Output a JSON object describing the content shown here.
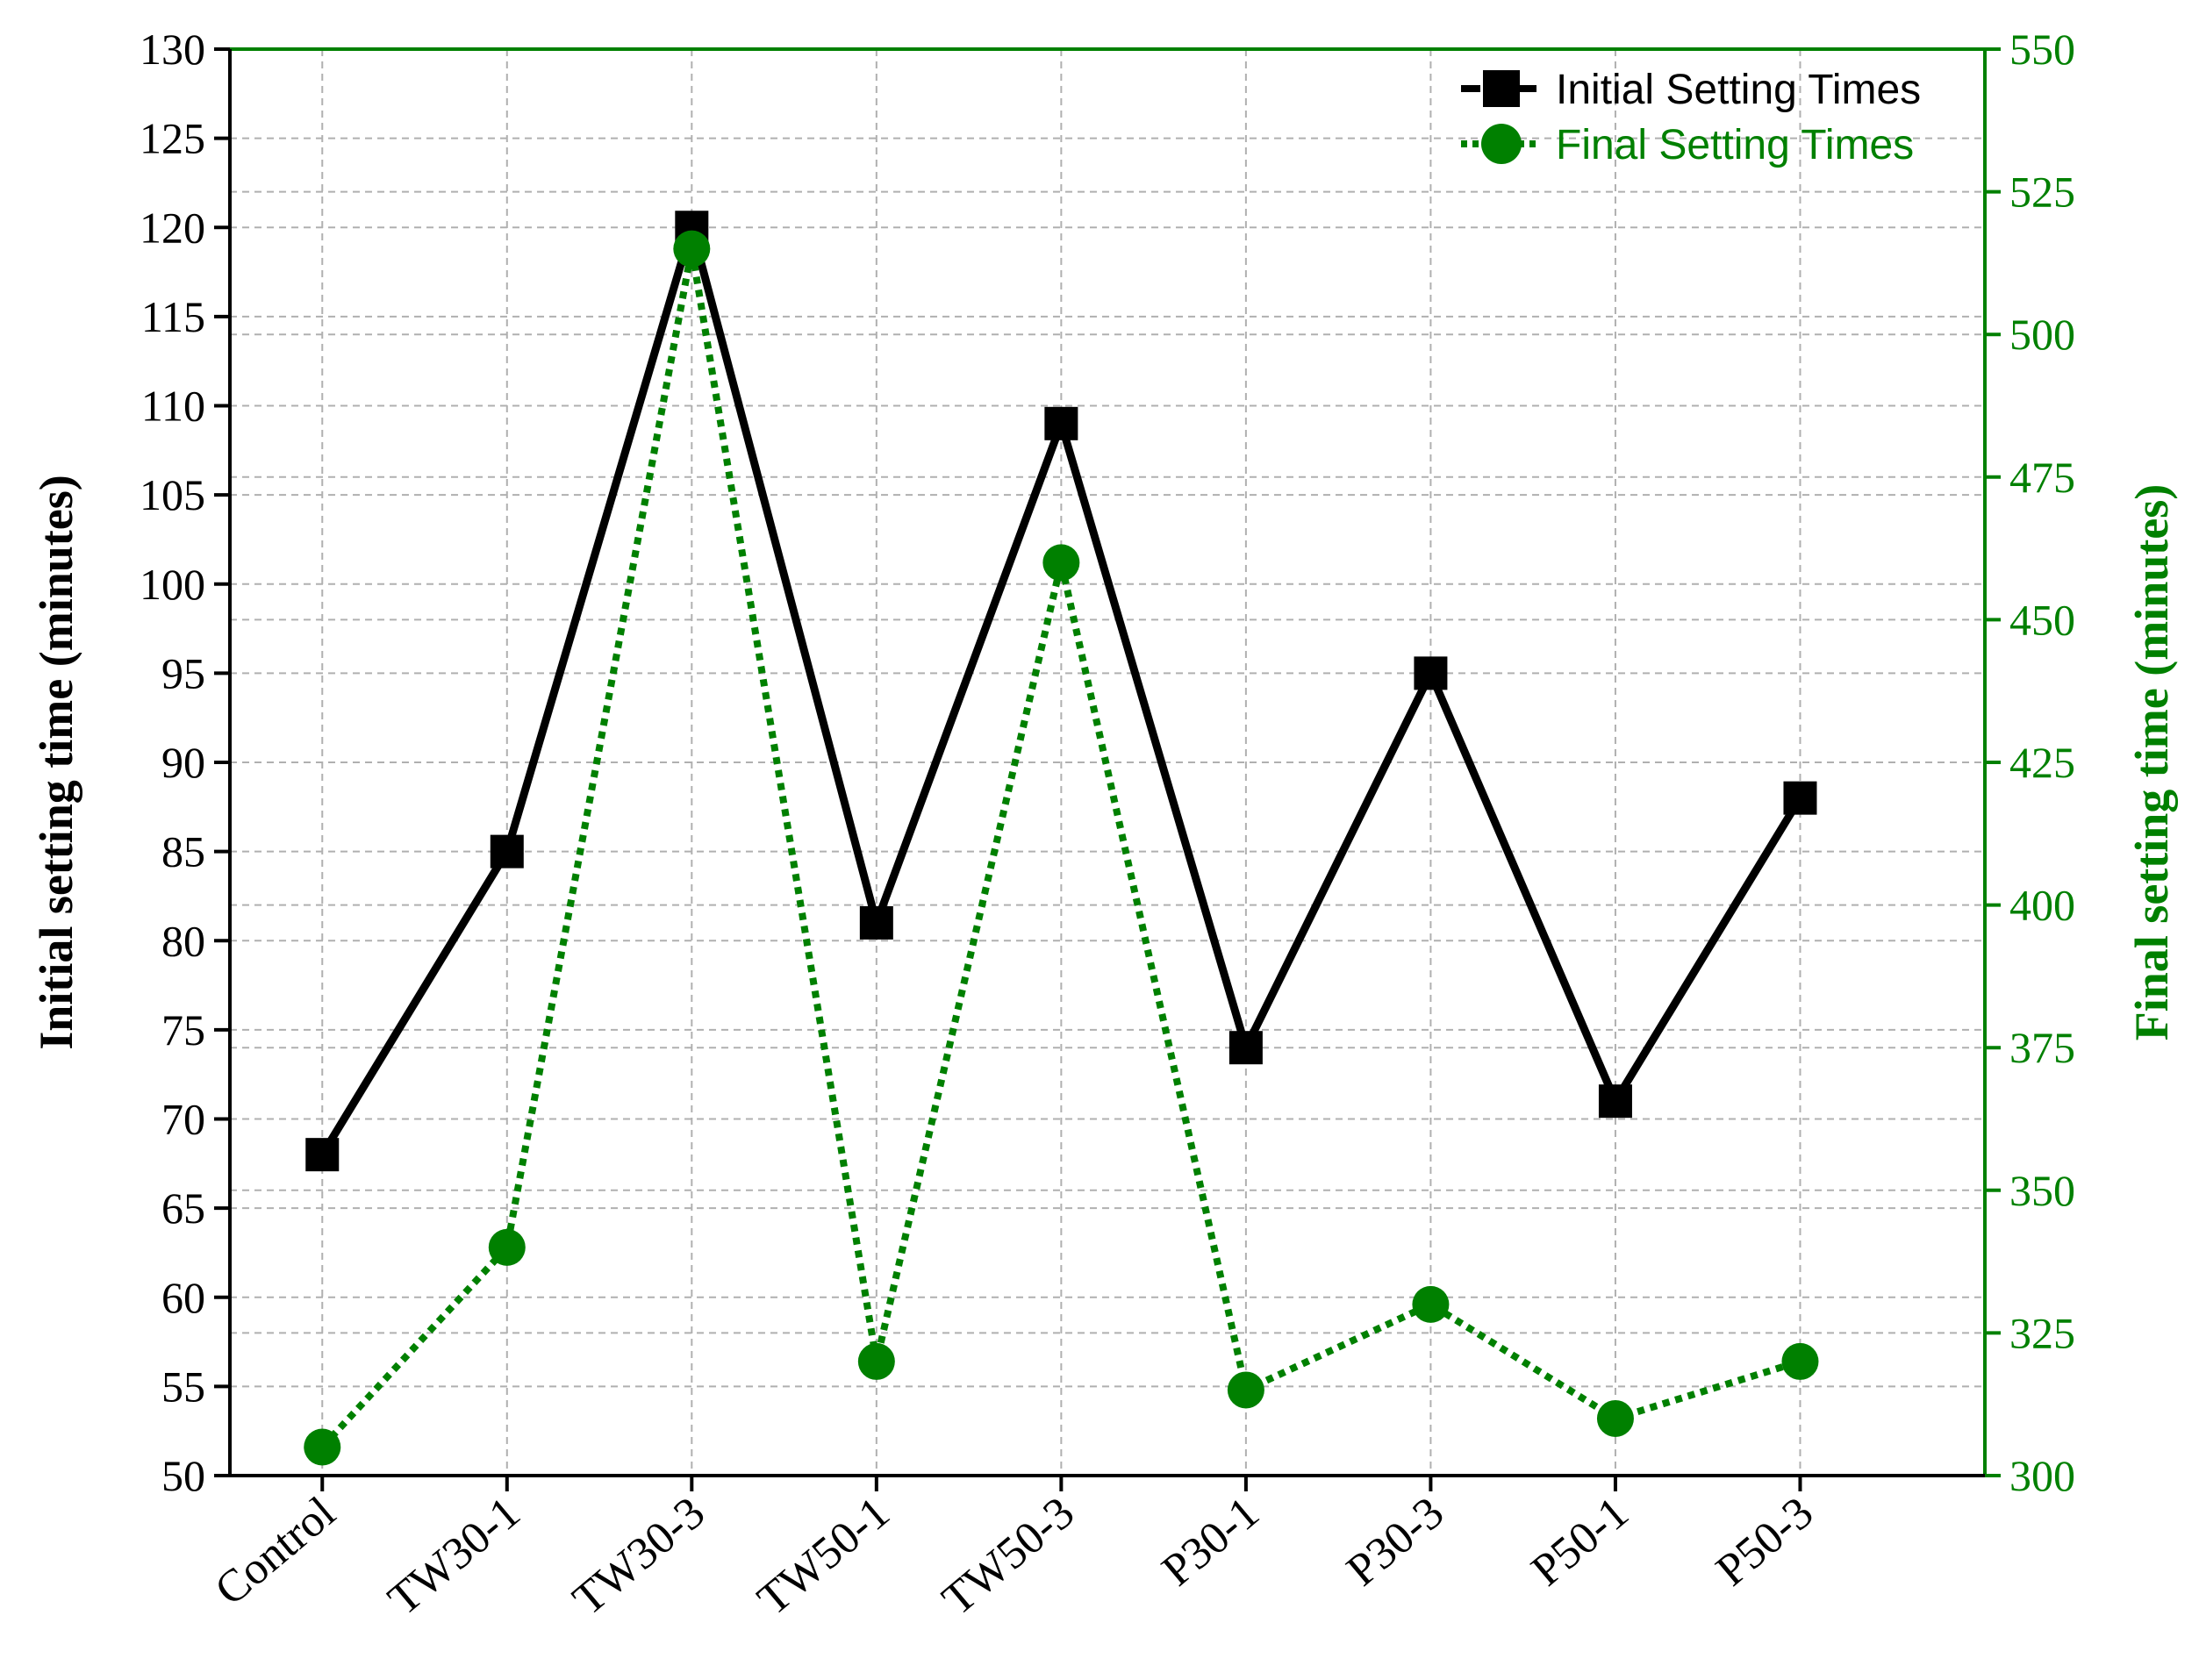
{
  "chart_data": {
    "type": "line",
    "categories": [
      "Control",
      "TW30-1",
      "TW30-3",
      "TW50-1",
      "TW50-3",
      "P30-1",
      "P30-3",
      "P50-1",
      "P50-3"
    ],
    "series": [
      {
        "name": "Initial Setting Times",
        "axis": "left",
        "color": "#000000",
        "line_style": "solid",
        "marker": "square",
        "values": [
          68,
          85,
          120,
          81,
          109,
          74,
          95,
          71,
          88
        ]
      },
      {
        "name": "Final Setting Times",
        "axis": "right",
        "color": "#008000",
        "line_style": "dotted",
        "marker": "circle",
        "values": [
          305,
          340,
          515,
          320,
          460,
          315,
          330,
          310,
          320
        ]
      }
    ],
    "ylabel_left": "Initial setting time (minutes)",
    "ylabel_right": "Final setting time (minutes)",
    "xlabel": "",
    "ylim_left": [
      50,
      130
    ],
    "ylim_right": [
      300,
      550
    ],
    "yticks_left": [
      50,
      55,
      60,
      65,
      70,
      75,
      80,
      85,
      90,
      95,
      100,
      105,
      110,
      115,
      120,
      125,
      130
    ],
    "yticks_right": [
      300,
      325,
      350,
      375,
      400,
      425,
      450,
      475,
      500,
      525,
      550
    ],
    "grid": true,
    "legend_position": "top-right"
  },
  "colors": {
    "left_axis": "#000000",
    "right_axis": "#008000",
    "grid": "#b0b0b0"
  }
}
